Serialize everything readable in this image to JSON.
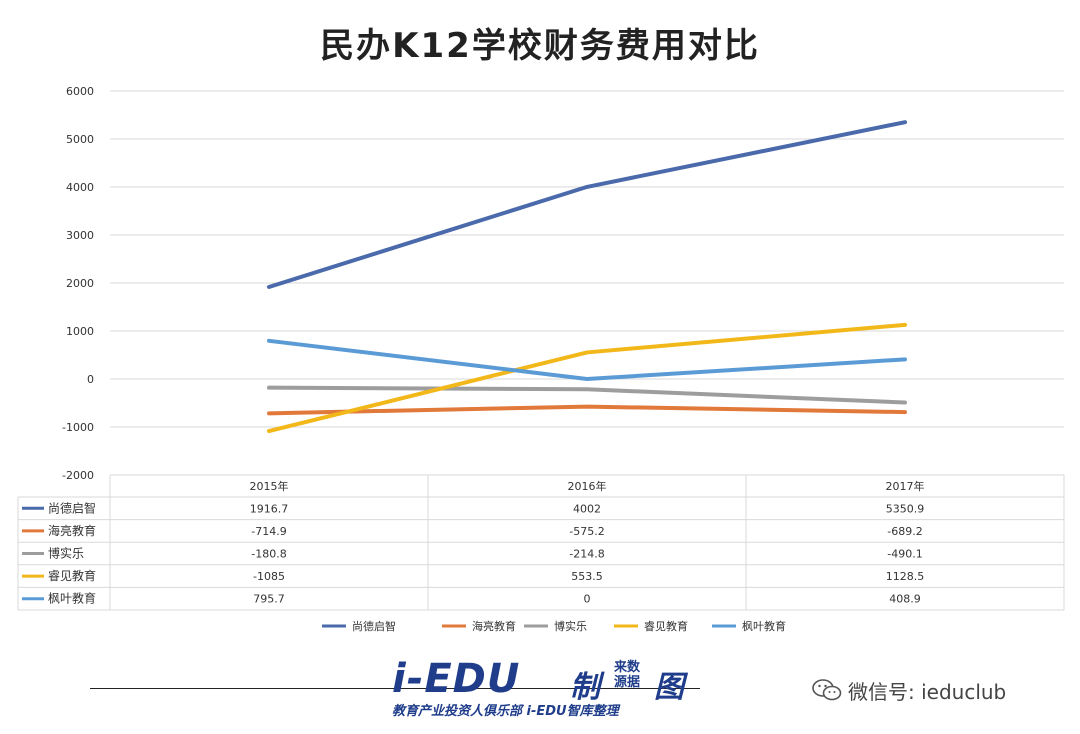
{
  "title": "民办K12学校财务费用对比",
  "chart_data": {
    "type": "line",
    "title": "民办K12学校财务费用对比",
    "categories": [
      "2015年",
      "2016年",
      "2017年"
    ],
    "ylim": [
      -2000,
      6000
    ],
    "yticks": [
      -2000,
      -1000,
      0,
      1000,
      2000,
      3000,
      4000,
      5000,
      6000
    ],
    "grid": true,
    "legend": "bottom",
    "series": [
      {
        "name": "尚德启智",
        "values": [
          1916.7,
          4002,
          5350.9
        ],
        "labels": [
          "1916.7",
          "4002",
          "5350.9"
        ],
        "color": "#4a6aab"
      },
      {
        "name": "海亮教育",
        "values": [
          -714.9,
          -575.2,
          -689.2
        ],
        "labels": [
          "-714.9",
          "-575.2",
          "-689.2"
        ],
        "color": "#e0793a"
      },
      {
        "name": "博实乐",
        "values": [
          -180.8,
          -214.8,
          -490.1
        ],
        "labels": [
          "-180.8",
          "-214.8",
          "-490.1"
        ],
        "color": "#9d9d9d"
      },
      {
        "name": "睿见教育",
        "values": [
          -1085,
          553.5,
          1128.5
        ],
        "labels": [
          "-1085",
          "553.5",
          "1128.5"
        ],
        "color": "#f2b81a"
      },
      {
        "name": "枫叶教育",
        "values": [
          795.7,
          0,
          408.9
        ],
        "labels": [
          "795.7",
          "0",
          "408.9"
        ],
        "color": "#5b9bd5"
      }
    ]
  },
  "logo": {
    "main": "i-EDU",
    "zhi": "制",
    "source_line1": "来数",
    "source_line2": "源据",
    "tu": "图",
    "subtitle": "教育产业投资人俱乐部  i-EDU智库整理"
  },
  "wechat": {
    "icon": "wechat-icon",
    "text": "微信号: ieduclub"
  }
}
